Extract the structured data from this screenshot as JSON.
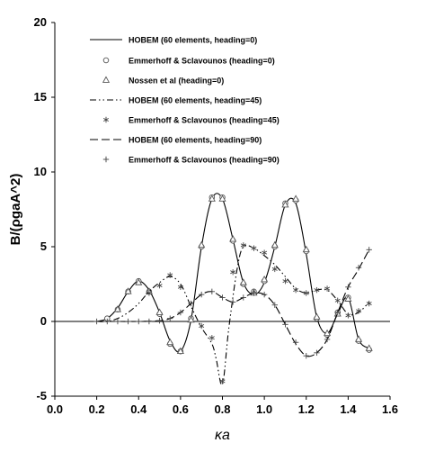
{
  "chart_data": {
    "type": "line",
    "title": "",
    "xlabel": "κa",
    "ylabel": "B/(ρgaA^2)",
    "xlim": [
      0.0,
      1.6
    ],
    "ylim": [
      -5,
      20
    ],
    "xticks": [
      0.0,
      0.2,
      0.4,
      0.6,
      0.8,
      1.0,
      1.2,
      1.4,
      1.6
    ],
    "yticks": [
      -5,
      0,
      5,
      10,
      15,
      20
    ],
    "xtick_labels": [
      "0.0",
      "0.2",
      "0.4",
      "0.6",
      "0.8",
      "1.0",
      "1.2",
      "1.4",
      "1.6"
    ],
    "ytick_labels": [
      "-5",
      "0",
      "5",
      "10",
      "15",
      "20"
    ],
    "grid": false,
    "legend_position": "top-left",
    "series": [
      {
        "name": "HOBEM (60 elements, heading=0)",
        "kind": "line",
        "dash": "solid",
        "marker": "none",
        "x": [
          0.2,
          0.25,
          0.3,
          0.35,
          0.4,
          0.45,
          0.5,
          0.55,
          0.6,
          0.65,
          0.7,
          0.75,
          0.8,
          0.85,
          0.9,
          0.95,
          1.0,
          1.05,
          1.1,
          1.15,
          1.2,
          1.25,
          1.3,
          1.35,
          1.4,
          1.45,
          1.5
        ],
        "y": [
          0.0,
          0.2,
          0.9,
          2.0,
          2.7,
          2.1,
          0.6,
          -1.3,
          -2.0,
          0.1,
          5.0,
          8.2,
          8.2,
          5.5,
          2.6,
          1.8,
          2.6,
          5.0,
          7.8,
          7.9,
          4.5,
          0.3,
          -0.8,
          0.5,
          1.6,
          -1.2,
          -1.8
        ]
      },
      {
        "name": "Emmerhoff & Sclavounos (heading=0)",
        "kind": "markers",
        "marker": "circle",
        "x": [
          0.25,
          0.3,
          0.35,
          0.4,
          0.45,
          0.5,
          0.55,
          0.6,
          0.65,
          0.7,
          0.75,
          0.8,
          0.85,
          0.9,
          0.95,
          1.0,
          1.05,
          1.1,
          1.15,
          1.2,
          1.25,
          1.3,
          1.35,
          1.4,
          1.45,
          1.5
        ],
        "y": [
          0.2,
          0.8,
          2.0,
          2.7,
          2.0,
          0.5,
          -1.5,
          -2.0,
          0.2,
          5.0,
          8.3,
          8.3,
          5.4,
          2.5,
          2.0,
          2.7,
          5.0,
          7.9,
          8.1,
          4.7,
          0.2,
          -0.9,
          0.6,
          1.6,
          -1.3,
          -1.9
        ]
      },
      {
        "name": "Nossen et al (heading=0)",
        "kind": "markers",
        "marker": "triangle",
        "x": [
          0.3,
          0.35,
          0.4,
          0.45,
          0.5,
          0.55,
          0.6,
          0.65,
          0.7,
          0.75,
          0.8,
          0.85,
          0.9,
          0.95,
          1.0,
          1.05,
          1.1,
          1.15,
          1.2,
          1.25,
          1.3,
          1.35,
          1.4,
          1.45,
          1.5
        ],
        "y": [
          0.8,
          2.0,
          2.6,
          2.0,
          0.6,
          -1.4,
          -2.0,
          0.1,
          5.1,
          8.2,
          8.2,
          5.5,
          2.6,
          1.9,
          2.8,
          5.1,
          7.8,
          8.2,
          4.8,
          0.3,
          -0.8,
          0.5,
          1.5,
          -1.2,
          -1.8
        ]
      },
      {
        "name": "HOBEM (60 elements, heading=45)",
        "kind": "line",
        "dash": "dashdotdot",
        "marker": "none",
        "x": [
          0.2,
          0.25,
          0.3,
          0.35,
          0.4,
          0.45,
          0.5,
          0.55,
          0.6,
          0.65,
          0.7,
          0.75,
          0.77,
          0.8,
          0.83,
          0.87,
          0.9,
          0.95,
          1.0,
          1.05,
          1.1,
          1.15,
          1.2,
          1.25,
          1.3,
          1.35,
          1.4,
          1.45,
          1.5
        ],
        "y": [
          0.0,
          0.0,
          0.2,
          0.6,
          1.2,
          2.0,
          2.6,
          3.0,
          2.5,
          1.0,
          -0.4,
          -1.5,
          -2.5,
          -4.2,
          -0.5,
          3.5,
          5.0,
          4.9,
          4.4,
          3.8,
          3.0,
          2.2,
          1.9,
          2.1,
          2.1,
          1.4,
          0.5,
          0.6,
          1.3
        ]
      },
      {
        "name": "Emmerhoff & Sclavounos (heading=45)",
        "kind": "markers",
        "marker": "asterisk",
        "x": [
          0.45,
          0.5,
          0.55,
          0.6,
          0.7,
          0.75,
          0.8,
          0.85,
          0.9,
          0.95,
          1.0,
          1.05,
          1.1,
          1.15,
          1.2,
          1.25,
          1.3,
          1.35,
          1.4,
          1.45,
          1.5
        ],
        "y": [
          1.9,
          2.4,
          3.1,
          2.3,
          -0.3,
          -1.1,
          -4.0,
          3.3,
          5.1,
          4.9,
          4.6,
          3.5,
          2.7,
          2.1,
          1.9,
          2.1,
          2.2,
          1.4,
          0.4,
          0.7,
          1.2
        ]
      },
      {
        "name": "HOBEM (60 elements, heading=90)",
        "kind": "line",
        "dash": "longdash",
        "marker": "none",
        "x": [
          0.2,
          0.3,
          0.4,
          0.5,
          0.55,
          0.6,
          0.65,
          0.7,
          0.75,
          0.8,
          0.85,
          0.9,
          0.95,
          1.0,
          1.05,
          1.1,
          1.15,
          1.2,
          1.25,
          1.3,
          1.35,
          1.4,
          1.45,
          1.5
        ],
        "y": [
          0.0,
          0.0,
          0.0,
          0.05,
          0.2,
          0.6,
          1.2,
          1.8,
          2.0,
          1.6,
          1.3,
          1.6,
          1.9,
          1.8,
          1.1,
          -0.2,
          -1.5,
          -2.3,
          -2.1,
          -1.2,
          0.6,
          2.3,
          3.5,
          4.8
        ]
      },
      {
        "name": "Emmerhoff & Sclavounos (heading=90)",
        "kind": "markers",
        "marker": "plus",
        "x": [
          0.2,
          0.25,
          0.3,
          0.35,
          0.4,
          0.45,
          0.5,
          0.55,
          0.6,
          0.65,
          0.7,
          0.75,
          0.8,
          0.85,
          0.9,
          0.95,
          1.0,
          1.05,
          1.1,
          1.15,
          1.2,
          1.25,
          1.3,
          1.35,
          1.4,
          1.45,
          1.5
        ],
        "y": [
          0.0,
          0.0,
          0.0,
          0.0,
          0.0,
          0.0,
          0.05,
          0.2,
          0.6,
          1.2,
          1.8,
          2.0,
          1.6,
          1.3,
          1.6,
          1.9,
          1.8,
          1.1,
          -0.2,
          -1.4,
          -2.3,
          -2.1,
          -1.2,
          0.6,
          2.3,
          3.6,
          4.8
        ]
      }
    ]
  }
}
